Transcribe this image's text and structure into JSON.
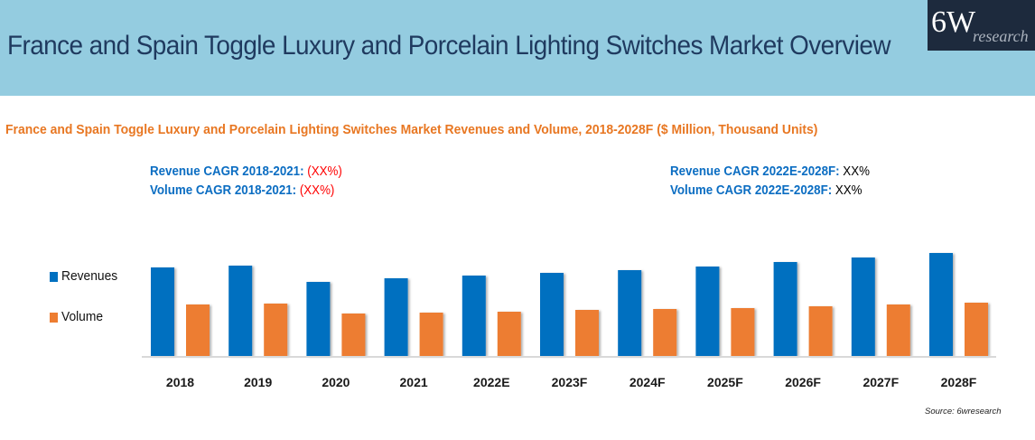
{
  "header": {
    "title": "France and Spain Toggle Luxury and Porcelain Lighting Switches Market Overview",
    "logo_main": "6W",
    "logo_sub": "research"
  },
  "colors": {
    "header_bg": "#94cce0",
    "title_text": "#1f3a5f",
    "subtitle_text": "#e87722",
    "cagr_label": "#0b6dc2",
    "negative_value": "#ff0000",
    "revenues": "#0070c0",
    "volume": "#ed7d31"
  },
  "cagr": {
    "left": [
      {
        "label": "Revenue CAGR 2018-2021:",
        "value": " (XX%)"
      },
      {
        "label": "Volume CAGR 2018-2021:",
        "value": " (XX%)"
      }
    ],
    "right": [
      {
        "label": "Revenue CAGR 2022E-2028F:",
        "value": " XX%"
      },
      {
        "label": "Volume CAGR 2022E-2028F:",
        "value": " XX%"
      }
    ]
  },
  "source": "Source: 6wresearch",
  "chart_data": {
    "type": "bar",
    "title": "France and Spain Toggle Luxury and Porcelain Lighting Switches Market Revenues and Volume, 2018-2028F ($ Million, Thousand Units)",
    "xlabel": "",
    "ylabel": "",
    "y_axis_shown": false,
    "grid": false,
    "legend": "left",
    "value_note": "No y-axis scale shown; values are relative estimates (index units)",
    "ylim": [
      0,
      120
    ],
    "categories": [
      "2018",
      "2019",
      "2020",
      "2021",
      "2022E",
      "2023F",
      "2024F",
      "2025F",
      "2026F",
      "2027F",
      "2028F"
    ],
    "series": [
      {
        "name": "Revenues",
        "color": "#0070c0",
        "values": [
          98,
          100,
          82,
          86,
          89,
          92,
          95,
          99,
          104,
          109,
          114
        ]
      },
      {
        "name": "Volume",
        "color": "#ed7d31",
        "values": [
          57,
          58,
          47,
          48,
          49,
          51,
          52,
          53,
          55,
          57,
          59
        ]
      }
    ]
  }
}
